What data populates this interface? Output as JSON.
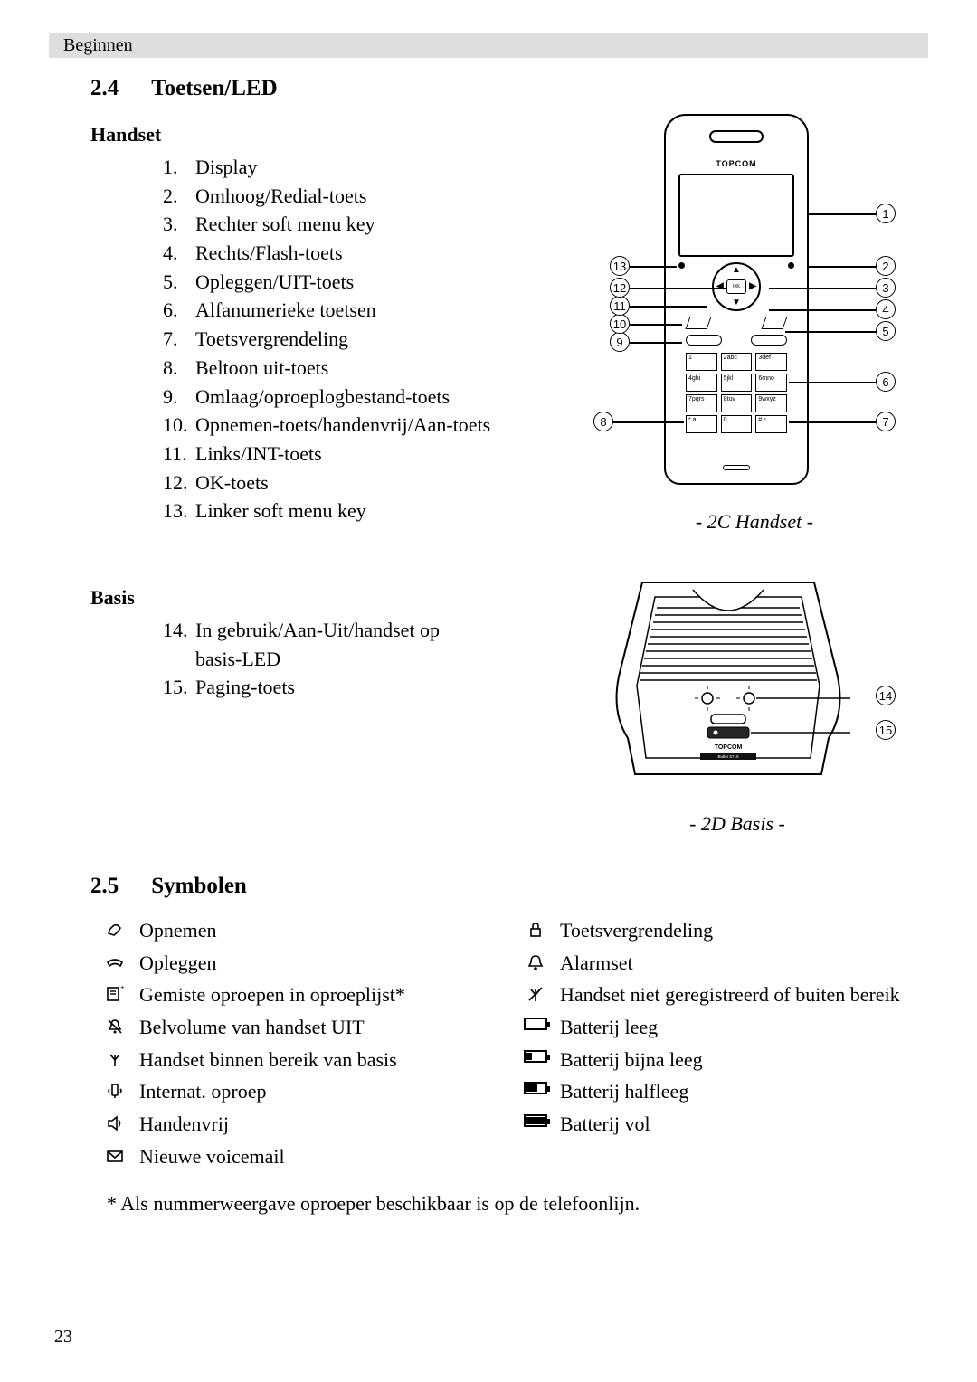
{
  "header": {
    "breadcrumb": "Beginnen"
  },
  "page_number": "23",
  "section_24": {
    "number": "2.4",
    "title": "Toetsen/LED",
    "handset": {
      "heading": "Handset",
      "items": [
        "Display",
        "Omhoog/Redial-toets",
        "Rechter soft menu key",
        "Rechts/Flash-toets",
        "Opleggen/UIT-toets",
        "Alfanumerieke toetsen",
        "Toetsvergrendeling",
        "Beltoon uit-toets",
        "Omlaag/oproeplogbestand-toets",
        "Opnemen-toets/handenvrij/Aan-toets",
        "Links/INT-toets",
        "OK-toets",
        "Linker soft menu key"
      ],
      "figure_caption": "- 2C Handset -",
      "brand": "TOPCOM",
      "keys": [
        [
          "1",
          "2abc",
          "3def"
        ],
        [
          "4ghi",
          "5jkl",
          "6mno"
        ],
        [
          "7pqrs",
          "8tuv",
          "9wxyz"
        ],
        [
          "* a",
          "0",
          "# ↑"
        ]
      ]
    },
    "basis": {
      "heading": "Basis",
      "items": [
        {
          "n": "14.",
          "t": "In gebruik/Aan-Uit/handset op"
        },
        {
          "n": "",
          "t": "basis-LED",
          "cont": true
        },
        {
          "n": "15.",
          "t": "Paging-toets"
        }
      ],
      "figure_caption": "- 2D Basis -",
      "brand": "TOPCOM",
      "model": "Butler 5710"
    }
  },
  "section_25": {
    "number": "2.5",
    "title": "Symbolen",
    "left": [
      {
        "icon": "phone-up",
        "label": "Opnemen"
      },
      {
        "icon": "phone-down",
        "label": "Opleggen"
      },
      {
        "icon": "missed-call",
        "label": "Gemiste oproepen in oproeplijst*"
      },
      {
        "icon": "bell-off",
        "label": "Belvolume van handset UIT"
      },
      {
        "icon": "antenna",
        "label": "Handset binnen bereik van basis"
      },
      {
        "icon": "int-call",
        "label": "Internat. oproep"
      },
      {
        "icon": "speaker",
        "label": "Handenvrij"
      },
      {
        "icon": "envelope",
        "label": "Nieuwe voicemail"
      }
    ],
    "right": [
      {
        "icon": "lock",
        "label": "Toetsvergrendeling"
      },
      {
        "icon": "alarm",
        "label": "Alarmset"
      },
      {
        "icon": "no-antenna",
        "label": "Handset niet geregistreerd of buiten bereik"
      },
      {
        "icon": "batt-0",
        "label": "Batterij leeg"
      },
      {
        "icon": "batt-1",
        "label": "Batterij bijna leeg"
      },
      {
        "icon": "batt-2",
        "label": "Batterij halfleeg"
      },
      {
        "icon": "batt-3",
        "label": "Batterij vol"
      }
    ],
    "footnote": "* Als nummerweergave oproeper beschikbaar is op de telefoonlijn."
  }
}
